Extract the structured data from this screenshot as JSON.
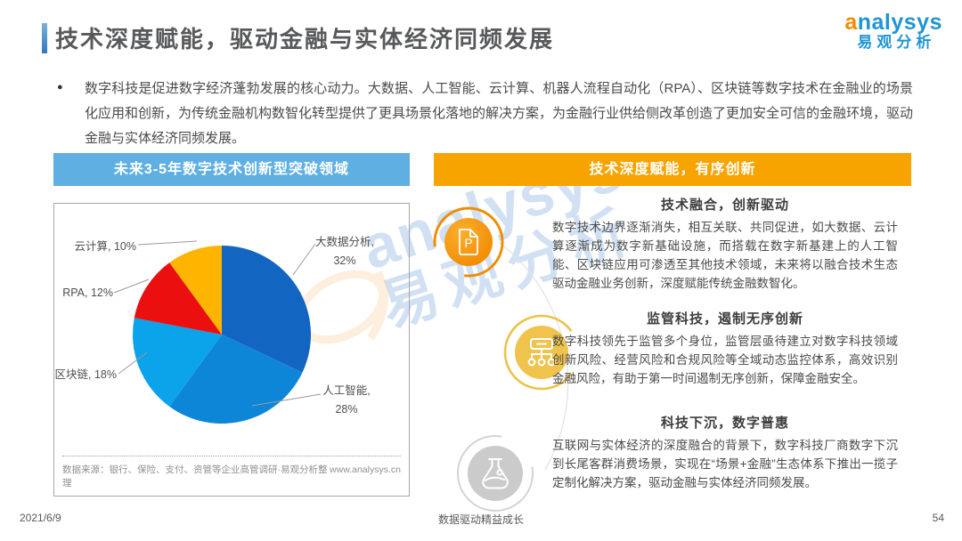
{
  "header": {
    "title": "技术深度赋能，驱动金融与实体经济同频发展",
    "logo": {
      "brand": "analysys",
      "brand_cn": "易观分析"
    }
  },
  "intro": {
    "bullet": "●",
    "text": "数字科技是促进数字经济蓬勃发展的核心动力。大数据、人工智能、云计算、机器人流程自动化（RPA）、区块链等数字技术在金融业的场景化应用和创新，为传统金融机构数智化转型提供了更具场景化落地的解决方案，为金融行业供给侧改革创造了更加安全可信的金融环境，驱动金融与实体经济同频发展。"
  },
  "left_panel": {
    "header": "未来3-5年数字技术创新型突破领域",
    "header_color": "#5fafe3"
  },
  "chart_data": {
    "type": "pie",
    "title": "未来3-5年数字技术创新型突破领域",
    "unit": "%",
    "start_angle_deg": 0,
    "direction": "clockwise",
    "slices": [
      {
        "name": "大数据分析",
        "pct": 32,
        "color": "#1365c2",
        "two_line": true
      },
      {
        "name": "人工智能",
        "pct": 28,
        "color": "#0e86d8",
        "two_line": true
      },
      {
        "name": "区块链",
        "pct": 18,
        "color": "#0ba3ea",
        "two_line": false
      },
      {
        "name": "RPA",
        "pct": 12,
        "color": "#eb0f0f",
        "two_line": false
      },
      {
        "name": "云计算",
        "pct": 10,
        "color": "#ffb400",
        "two_line": false
      }
    ],
    "source": "数据来源：银行、保险、支付、资管等企业高管调研·易观分析整理",
    "website": "www.analysys.cn",
    "legend_position": "labels-with-leader-lines",
    "grid": false
  },
  "right_panel": {
    "header": "技术深度赋能，有序创新",
    "header_color": "#f7a300",
    "sections": [
      {
        "icon": "document-p-icon",
        "title": "技术融合，创新驱动",
        "body": "数字技术边界逐渐消失，相互关联、共同促进，如大数据、云计算逐渐成为数字新基础设施，而搭载在数字新基建上的人工智能、区块链应用可渗透至其他技术领域，未来将以融合技术生态驱动金融业务创新，深度赋能传统金融数智化。"
      },
      {
        "icon": "org-chart-icon",
        "title": "监管科技，遏制无序创新",
        "body": "数字科技领先于监管多个身位，监管层亟待建立对数字科技领域创新风险、经营风险和合规风险等全域动态监控体系，高效识别金融风险，有助于第一时间遏制无序创新，保障金融安全。"
      },
      {
        "icon": "flask-icon",
        "title": "科技下沉，数字普惠",
        "body": "互联网与实体经济的深度融合的背景下，数字科技厂商数字下沉到长尾客群消费场景，实现在“场景+金融”生态体系下推出一揽子定制化解决方案，驱动金融与实体经济同频发展。"
      }
    ]
  },
  "watermark": {
    "text_en": "analysys",
    "text_cn": "易观分析"
  },
  "footer": {
    "date": "2021/6/9",
    "slogan": "数据驱动精益成长",
    "page": "54"
  }
}
